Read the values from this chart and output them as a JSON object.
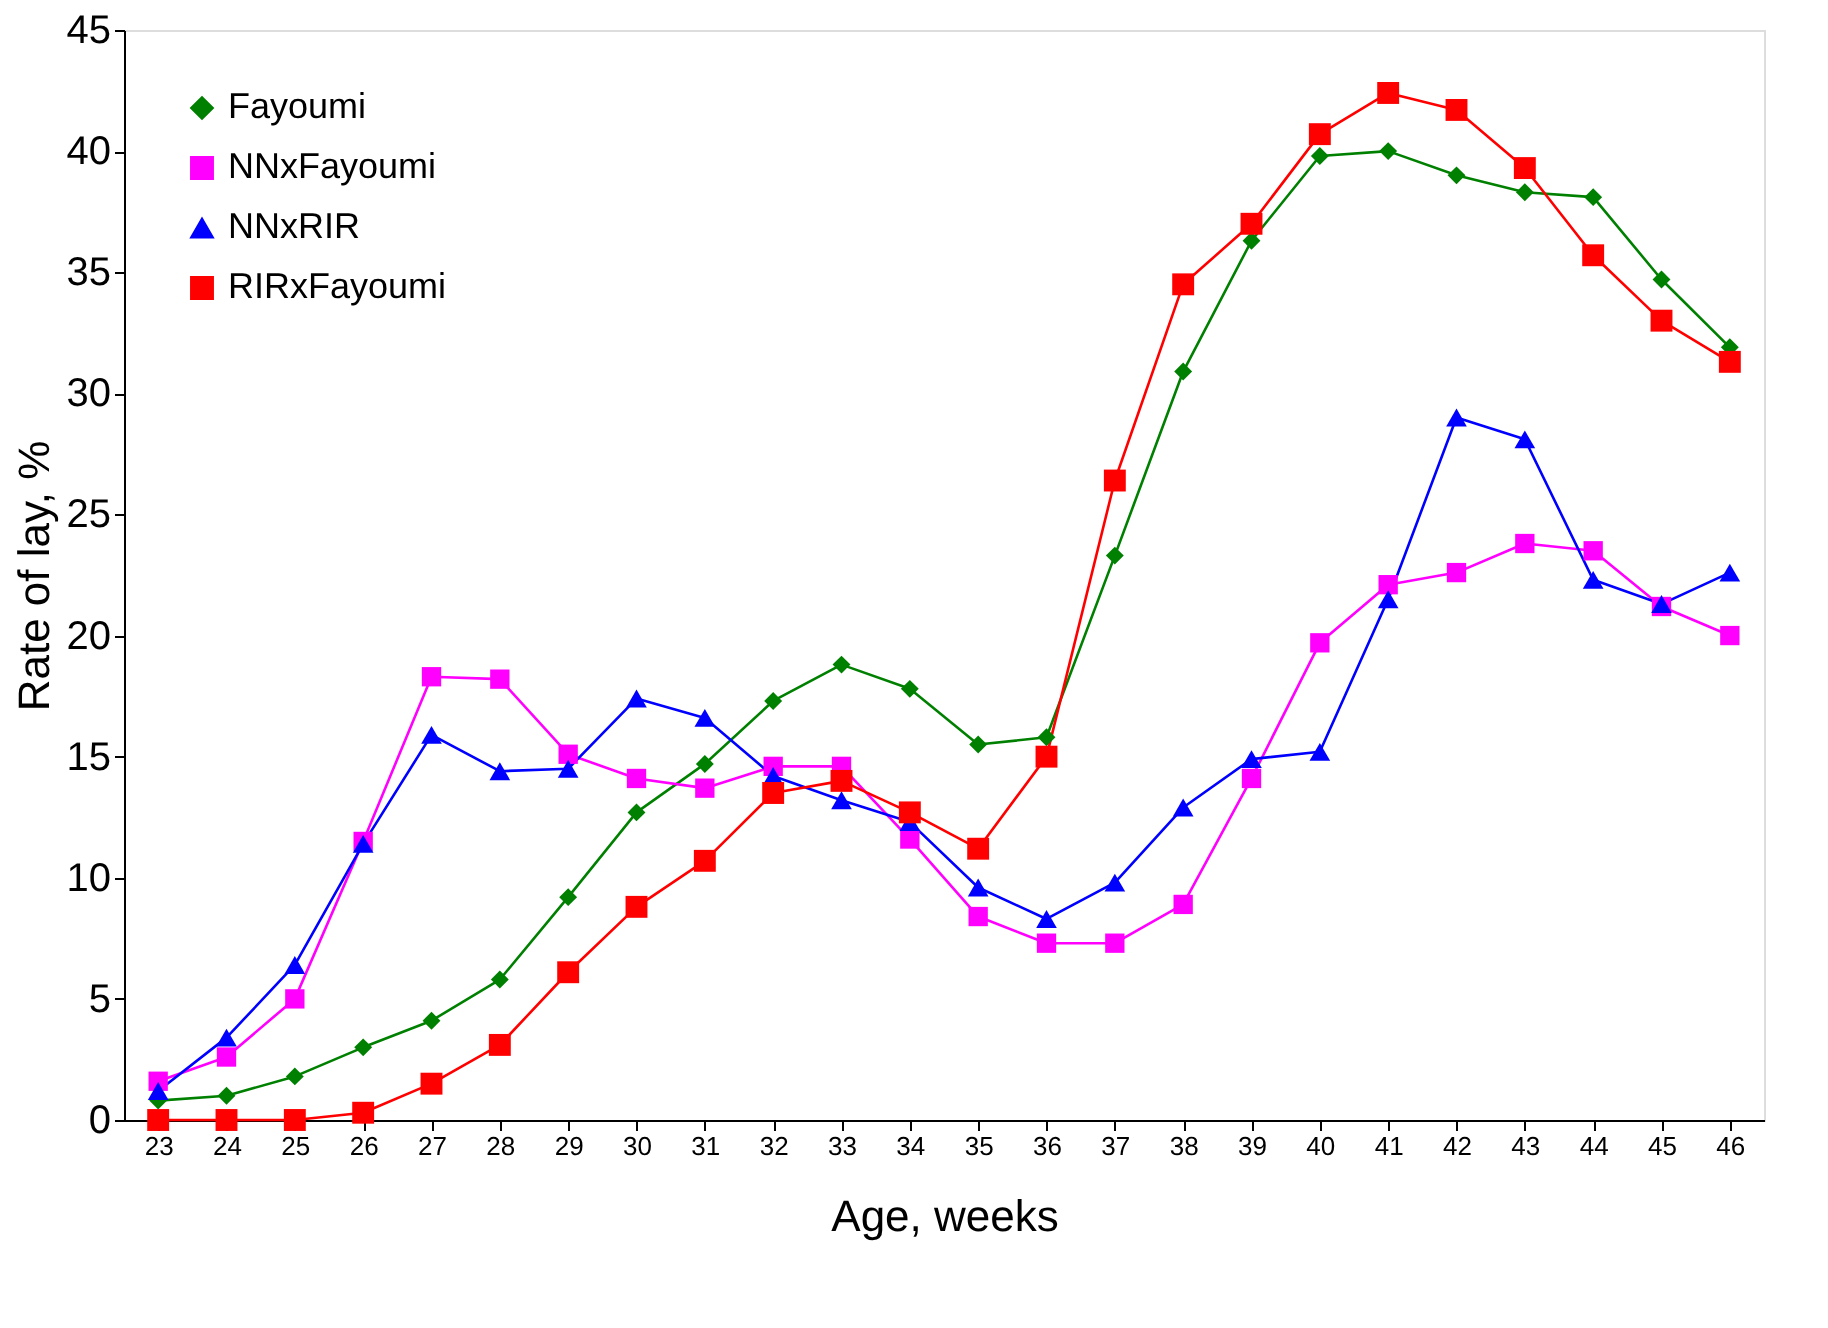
{
  "chart_data": {
    "type": "line",
    "xlabel": "Age, weeks",
    "ylabel": "Rate of lay, %",
    "categories": [
      "23",
      "24",
      "25",
      "26",
      "27",
      "28",
      "29",
      "30",
      "31",
      "32",
      "33",
      "34",
      "35",
      "36",
      "37",
      "38",
      "39",
      "40",
      "41",
      "42",
      "43",
      "44",
      "45",
      "46"
    ],
    "ylim": [
      0,
      45
    ],
    "yticks": [
      0,
      5,
      10,
      15,
      20,
      25,
      30,
      35,
      40,
      45
    ],
    "grid": false,
    "legend": "top left",
    "line_style": "solid",
    "series": [
      {
        "name": "Fayoumi",
        "color": "#008000",
        "marker": "diamond",
        "values": [
          0.8,
          1.0,
          1.8,
          3.0,
          4.1,
          5.8,
          9.2,
          12.7,
          14.7,
          17.3,
          18.8,
          17.8,
          15.5,
          15.8,
          23.3,
          30.9,
          36.3,
          39.8,
          40.0,
          39.0,
          38.3,
          38.1,
          34.7,
          31.9
        ]
      },
      {
        "name": "NNxFayoumi",
        "color": "#ff00ff",
        "marker": "square",
        "values": [
          1.6,
          2.6,
          5.0,
          11.5,
          18.3,
          18.2,
          15.1,
          14.1,
          13.7,
          14.6,
          14.6,
          11.6,
          8.4,
          7.3,
          7.3,
          8.9,
          14.1,
          19.7,
          22.1,
          22.6,
          23.8,
          23.5,
          21.2,
          20.0
        ]
      },
      {
        "name": "NNxRIR",
        "color": "#0000ff",
        "marker": "triangle",
        "values": [
          1.2,
          3.4,
          6.4,
          11.4,
          15.9,
          14.4,
          14.5,
          17.4,
          16.6,
          14.2,
          13.2,
          12.3,
          9.6,
          8.3,
          9.8,
          12.9,
          14.9,
          15.2,
          21.5,
          29.0,
          28.1,
          22.3,
          21.3,
          22.6
        ]
      },
      {
        "name": "RIRxFayoumi",
        "color": "#ff0000",
        "marker": "square",
        "values": [
          0,
          0,
          0,
          0.3,
          1.5,
          3.1,
          6.1,
          8.8,
          10.7,
          13.5,
          14.0,
          12.7,
          11.2,
          15.0,
          26.4,
          34.5,
          37.0,
          40.7,
          42.4,
          41.7,
          39.3,
          35.7,
          33.0,
          31.3
        ]
      }
    ]
  }
}
